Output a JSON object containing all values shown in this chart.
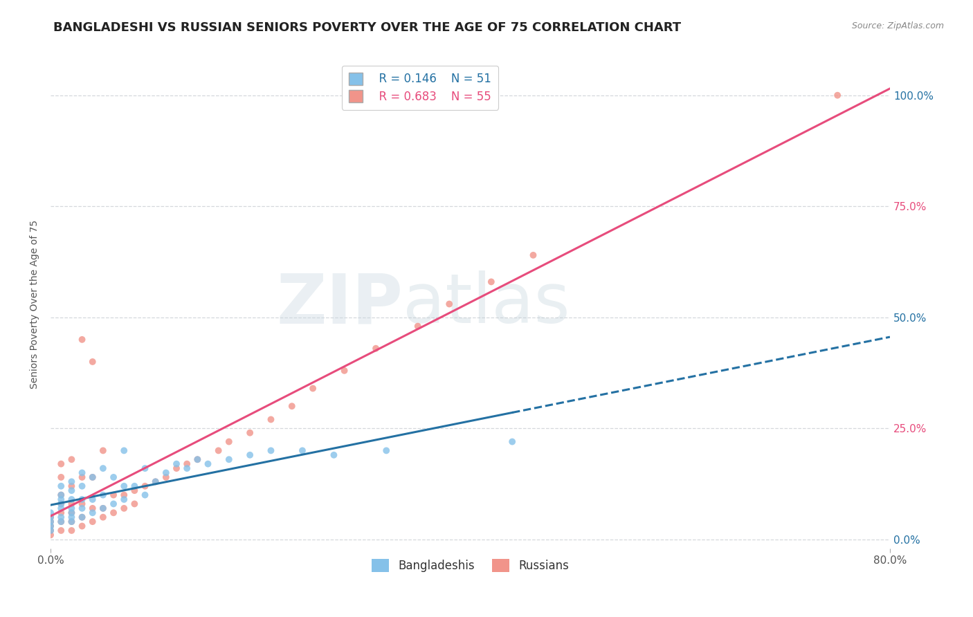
{
  "title": "BANGLADESHI VS RUSSIAN SENIORS POVERTY OVER THE AGE OF 75 CORRELATION CHART",
  "source": "Source: ZipAtlas.com",
  "ylabel": "Seniors Poverty Over the Age of 75",
  "ytick_labels": [
    "0.0%",
    "25.0%",
    "50.0%",
    "75.0%",
    "100.0%"
  ],
  "ytick_values": [
    0.0,
    0.25,
    0.5,
    0.75,
    1.0
  ],
  "xlim": [
    0.0,
    0.8
  ],
  "ylim": [
    -0.02,
    1.08
  ],
  "watermark_zip": "ZIP",
  "watermark_atlas": "atlas",
  "legend_r_bangladeshi": "R = 0.146",
  "legend_n_bangladeshi": "N = 51",
  "legend_r_russian": "R = 0.683",
  "legend_n_russian": "N = 55",
  "bangladeshi_color": "#85c1e9",
  "russian_color": "#f1948a",
  "bangladeshi_line_color": "#2471a3",
  "russian_line_color": "#e74c7c",
  "scatter_alpha": 0.8,
  "scatter_size": 50,
  "bangladeshi_x": [
    0.0,
    0.0,
    0.0,
    0.0,
    0.0,
    0.01,
    0.01,
    0.01,
    0.01,
    0.01,
    0.01,
    0.01,
    0.02,
    0.02,
    0.02,
    0.02,
    0.02,
    0.02,
    0.02,
    0.03,
    0.03,
    0.03,
    0.03,
    0.03,
    0.04,
    0.04,
    0.04,
    0.05,
    0.05,
    0.05,
    0.06,
    0.06,
    0.07,
    0.07,
    0.07,
    0.08,
    0.09,
    0.09,
    0.1,
    0.11,
    0.12,
    0.13,
    0.14,
    0.15,
    0.17,
    0.19,
    0.21,
    0.24,
    0.27,
    0.32,
    0.44
  ],
  "bangladeshi_y": [
    0.02,
    0.03,
    0.04,
    0.05,
    0.06,
    0.04,
    0.05,
    0.07,
    0.08,
    0.09,
    0.1,
    0.12,
    0.04,
    0.05,
    0.06,
    0.07,
    0.09,
    0.11,
    0.13,
    0.05,
    0.07,
    0.09,
    0.12,
    0.15,
    0.06,
    0.09,
    0.14,
    0.07,
    0.1,
    0.16,
    0.08,
    0.14,
    0.09,
    0.12,
    0.2,
    0.12,
    0.1,
    0.16,
    0.13,
    0.15,
    0.17,
    0.16,
    0.18,
    0.17,
    0.18,
    0.19,
    0.2,
    0.2,
    0.19,
    0.2,
    0.22
  ],
  "russian_x": [
    0.0,
    0.0,
    0.0,
    0.0,
    0.0,
    0.01,
    0.01,
    0.01,
    0.01,
    0.01,
    0.01,
    0.01,
    0.02,
    0.02,
    0.02,
    0.02,
    0.02,
    0.02,
    0.03,
    0.03,
    0.03,
    0.03,
    0.03,
    0.04,
    0.04,
    0.04,
    0.04,
    0.05,
    0.05,
    0.05,
    0.06,
    0.06,
    0.07,
    0.07,
    0.08,
    0.08,
    0.09,
    0.1,
    0.11,
    0.12,
    0.13,
    0.14,
    0.16,
    0.17,
    0.19,
    0.21,
    0.23,
    0.25,
    0.28,
    0.31,
    0.35,
    0.38,
    0.42,
    0.46,
    0.75
  ],
  "russian_y": [
    0.01,
    0.02,
    0.03,
    0.04,
    0.05,
    0.02,
    0.04,
    0.06,
    0.08,
    0.1,
    0.14,
    0.17,
    0.02,
    0.04,
    0.06,
    0.08,
    0.12,
    0.18,
    0.03,
    0.05,
    0.08,
    0.14,
    0.45,
    0.04,
    0.07,
    0.14,
    0.4,
    0.05,
    0.07,
    0.2,
    0.06,
    0.1,
    0.07,
    0.1,
    0.08,
    0.11,
    0.12,
    0.13,
    0.14,
    0.16,
    0.17,
    0.18,
    0.2,
    0.22,
    0.24,
    0.27,
    0.3,
    0.34,
    0.38,
    0.43,
    0.48,
    0.53,
    0.58,
    0.64,
    1.0
  ],
  "title_fontsize": 13,
  "axis_label_fontsize": 10,
  "tick_fontsize": 11,
  "legend_fontsize": 12,
  "background_color": "#ffffff",
  "grid_color": "#d5d8dc",
  "right_tick_colors": [
    "#2471a3",
    "#e74c7c",
    "#2471a3",
    "#e74c7c",
    "#2471a3"
  ]
}
